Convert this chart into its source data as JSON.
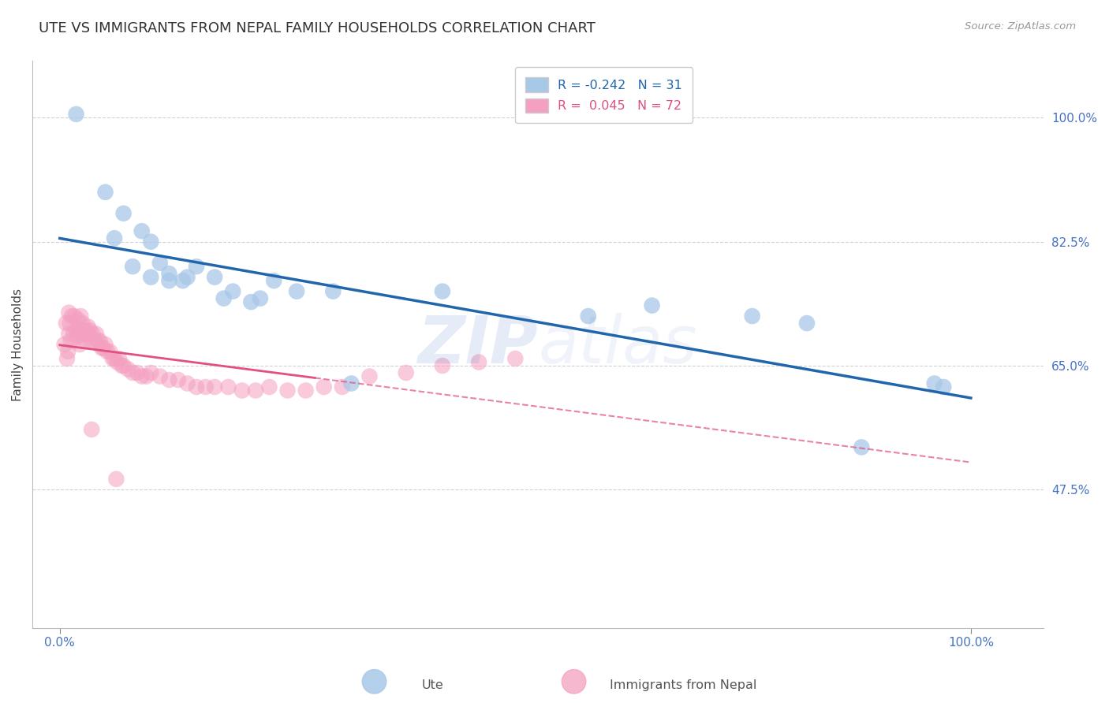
{
  "title": "UTE VS IMMIGRANTS FROM NEPAL FAMILY HOUSEHOLDS CORRELATION CHART",
  "source_text": "Source: ZipAtlas.com",
  "ylabel": "Family Households",
  "y_tick_labels": [
    "47.5%",
    "65.0%",
    "82.5%",
    "100.0%"
  ],
  "y_tick_values": [
    0.475,
    0.65,
    0.825,
    1.0
  ],
  "x_tick_labels": [
    "0.0%",
    "100.0%"
  ],
  "x_tick_values": [
    0.0,
    1.0
  ],
  "xlim": [
    -0.03,
    1.08
  ],
  "ylim": [
    0.28,
    1.08
  ],
  "watermark": "ZIPatlas",
  "legend_blue": "R = -0.242   N = 31",
  "legend_pink": "R =  0.045   N = 72",
  "blue_color": "#a8c8e8",
  "pink_color": "#f4a0c0",
  "blue_line_color": "#2166ac",
  "pink_line_color": "#e05080",
  "background_color": "#ffffff",
  "grid_color": "#cccccc",
  "title_color": "#333333",
  "axis_color": "#4472c4",
  "blue_x": [
    0.018,
    0.05,
    0.07,
    0.09,
    0.1,
    0.11,
    0.12,
    0.135,
    0.15,
    0.17,
    0.19,
    0.21,
    0.235,
    0.26,
    0.3,
    0.42,
    0.58,
    0.65,
    0.76,
    0.82,
    0.88,
    0.96,
    0.97,
    0.06,
    0.08,
    0.1,
    0.12,
    0.14,
    0.18,
    0.22,
    0.32
  ],
  "blue_y": [
    1.005,
    0.895,
    0.865,
    0.84,
    0.825,
    0.795,
    0.78,
    0.77,
    0.79,
    0.775,
    0.755,
    0.74,
    0.77,
    0.755,
    0.755,
    0.755,
    0.72,
    0.735,
    0.72,
    0.71,
    0.535,
    0.625,
    0.62,
    0.83,
    0.79,
    0.775,
    0.77,
    0.775,
    0.745,
    0.745,
    0.625
  ],
  "pink_x": [
    0.005,
    0.007,
    0.009,
    0.01,
    0.01,
    0.011,
    0.013,
    0.015,
    0.016,
    0.018,
    0.019,
    0.02,
    0.021,
    0.022,
    0.023,
    0.024,
    0.025,
    0.026,
    0.027,
    0.028,
    0.029,
    0.03,
    0.031,
    0.032,
    0.033,
    0.035,
    0.036,
    0.038,
    0.04,
    0.042,
    0.044,
    0.046,
    0.048,
    0.05,
    0.052,
    0.055,
    0.058,
    0.06,
    0.063,
    0.065,
    0.068,
    0.07,
    0.075,
    0.08,
    0.085,
    0.09,
    0.095,
    0.1,
    0.11,
    0.12,
    0.13,
    0.14,
    0.15,
    0.16,
    0.17,
    0.185,
    0.2,
    0.215,
    0.23,
    0.25,
    0.27,
    0.29,
    0.31,
    0.34,
    0.38,
    0.42,
    0.46,
    0.5,
    0.008,
    0.012,
    0.035,
    0.062
  ],
  "pink_y": [
    0.68,
    0.71,
    0.67,
    0.695,
    0.725,
    0.71,
    0.72,
    0.695,
    0.72,
    0.7,
    0.69,
    0.715,
    0.7,
    0.68,
    0.72,
    0.695,
    0.71,
    0.7,
    0.695,
    0.685,
    0.7,
    0.695,
    0.705,
    0.695,
    0.7,
    0.685,
    0.695,
    0.685,
    0.695,
    0.685,
    0.685,
    0.675,
    0.675,
    0.68,
    0.67,
    0.67,
    0.66,
    0.66,
    0.655,
    0.66,
    0.65,
    0.65,
    0.645,
    0.64,
    0.64,
    0.635,
    0.635,
    0.64,
    0.635,
    0.63,
    0.63,
    0.625,
    0.62,
    0.62,
    0.62,
    0.62,
    0.615,
    0.615,
    0.62,
    0.615,
    0.615,
    0.62,
    0.62,
    0.635,
    0.64,
    0.65,
    0.655,
    0.66,
    0.66,
    0.685,
    0.56,
    0.49
  ]
}
